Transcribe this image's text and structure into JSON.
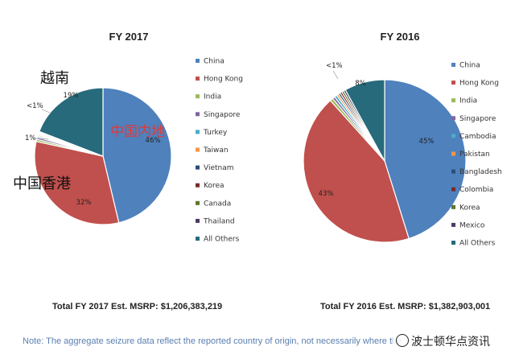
{
  "chart_data": [
    {
      "type": "pie",
      "title": "FY 2017",
      "slices": [
        {
          "label": "China",
          "value": 46,
          "pct_label": "46%",
          "color": "#4f81bd"
        },
        {
          "label": "Hong Kong",
          "value": 32,
          "pct_label": "32%",
          "color": "#c0504d"
        },
        {
          "label": "India",
          "value": 0.5,
          "pct_label": "",
          "color": "#9bbb59"
        },
        {
          "label": "Singapore",
          "value": 0.5,
          "pct_label": "",
          "color": "#8064a2"
        },
        {
          "label": "Turkey",
          "value": 0.3,
          "pct_label": "",
          "color": "#4bacc6"
        },
        {
          "label": "Taiwan",
          "value": 0.3,
          "pct_label": "",
          "color": "#f79646"
        },
        {
          "label": "Vietnam",
          "value": 0.2,
          "pct_label": "",
          "color": "#2c4d75"
        },
        {
          "label": "Korea",
          "value": 0.2,
          "pct_label": "",
          "color": "#772c2a"
        },
        {
          "label": "Canada",
          "value": 0.2,
          "pct_label": "",
          "color": "#5f7530"
        },
        {
          "label": "Thailand",
          "value": 0.2,
          "pct_label": "",
          "color": "#4d3b62"
        },
        {
          "label": "All Others",
          "value": 19,
          "pct_label": "19%",
          "color": "#276a7c"
        }
      ],
      "callouts": [
        "<1%",
        "1%"
      ],
      "annotations": [
        "越南",
        "中国内地",
        "中国香港"
      ],
      "total_label": "Total FY 2017 Est. MSRP:",
      "total_value": "$1,206,383,219"
    },
    {
      "type": "pie",
      "title": "FY 2016",
      "slices": [
        {
          "label": "China",
          "value": 45,
          "pct_label": "45%",
          "color": "#4f81bd"
        },
        {
          "label": "Hong Kong",
          "value": 43,
          "pct_label": "43%",
          "color": "#c0504d"
        },
        {
          "label": "India",
          "value": 0.6,
          "pct_label": "",
          "color": "#9bbb59"
        },
        {
          "label": "Singapore",
          "value": 0.5,
          "pct_label": "",
          "color": "#8064a2"
        },
        {
          "label": "Cambodia",
          "value": 0.5,
          "pct_label": "",
          "color": "#4bacc6"
        },
        {
          "label": "Pakistan",
          "value": 0.4,
          "pct_label": "",
          "color": "#f79646"
        },
        {
          "label": "Bangladesh",
          "value": 0.4,
          "pct_label": "",
          "color": "#2c4d75"
        },
        {
          "label": "Colombia",
          "value": 0.4,
          "pct_label": "",
          "color": "#772c2a"
        },
        {
          "label": "Korea",
          "value": 0.4,
          "pct_label": "",
          "color": "#5f7530"
        },
        {
          "label": "Mexico",
          "value": 0.4,
          "pct_label": "",
          "color": "#4d3b62"
        },
        {
          "label": "All Others",
          "value": 8,
          "pct_label": "8%",
          "color": "#276a7c"
        }
      ],
      "callouts": [
        "<1%"
      ],
      "total_label": "Total FY 2016 Est. MSRP:",
      "total_value": "$1,382,903,001"
    }
  ],
  "note": "Note: The aggregate seizure data reflect the reported country of origin, not necessarily where the",
  "watermark": "波士顿华点资讯"
}
